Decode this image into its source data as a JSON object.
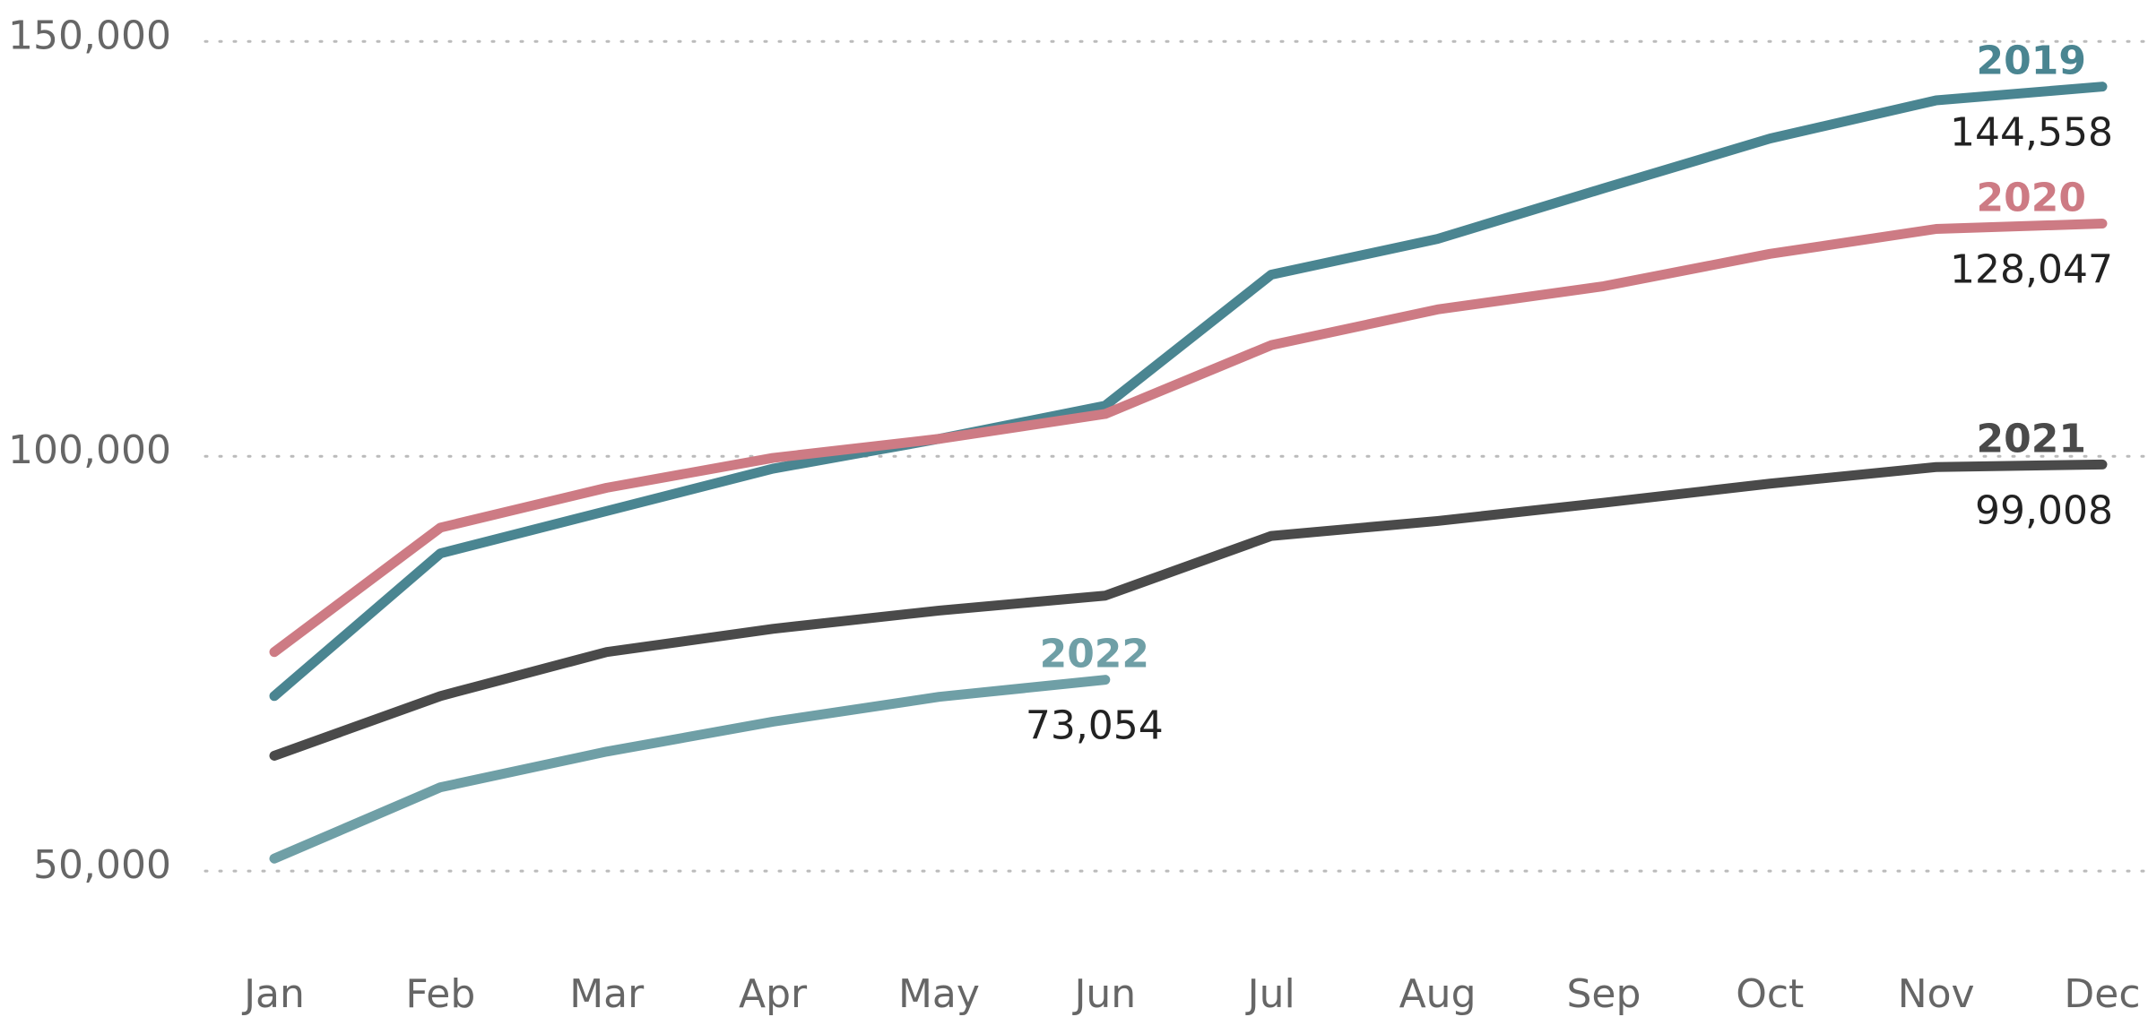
{
  "chart_data": {
    "type": "line",
    "categories": [
      "Jan",
      "Feb",
      "Mar",
      "Apr",
      "May",
      "Jun",
      "Jul",
      "Aug",
      "Sep",
      "Oct",
      "Nov",
      "Dec"
    ],
    "series": [
      {
        "name": "2019",
        "color": "#4a8591",
        "values": [
          71100,
          88300,
          93400,
          98500,
          102100,
          106100,
          121900,
          126200,
          132300,
          138300,
          142900,
          144558
        ],
        "value_labels": [
          null,
          null,
          null,
          null,
          null,
          null,
          null,
          null,
          null,
          null,
          null,
          "144,558"
        ]
      },
      {
        "name": "2020",
        "color": "#cd7b84",
        "values": [
          76400,
          91400,
          96200,
          99800,
          102100,
          105100,
          113400,
          117700,
          120500,
          124400,
          127400,
          128047
        ],
        "value_labels": [
          null,
          null,
          null,
          null,
          null,
          null,
          null,
          null,
          null,
          null,
          null,
          "128,047"
        ]
      },
      {
        "name": "2021",
        "color": "#4a4a4a",
        "values": [
          63900,
          71100,
          76400,
          79200,
          81400,
          83200,
          90400,
          92200,
          94400,
          96700,
          98700,
          99008
        ],
        "value_labels": [
          null,
          null,
          null,
          null,
          null,
          null,
          null,
          null,
          null,
          null,
          null,
          "99,008"
        ]
      },
      {
        "name": "2022",
        "color": "#6f9fa6",
        "values": [
          51500,
          60100,
          64400,
          68000,
          71000,
          73054,
          null,
          null,
          null,
          null,
          null,
          null
        ],
        "value_labels": [
          null,
          null,
          null,
          null,
          null,
          "73,054",
          null,
          null,
          null,
          null,
          null,
          null
        ]
      }
    ],
    "ylim": [
      35000,
      155000
    ],
    "yticks": [
      {
        "value": 50000,
        "label": "50,000"
      },
      {
        "value": 100000,
        "label": "100,000"
      },
      {
        "value": 150000,
        "label": "150,000"
      }
    ],
    "grid": true
  }
}
